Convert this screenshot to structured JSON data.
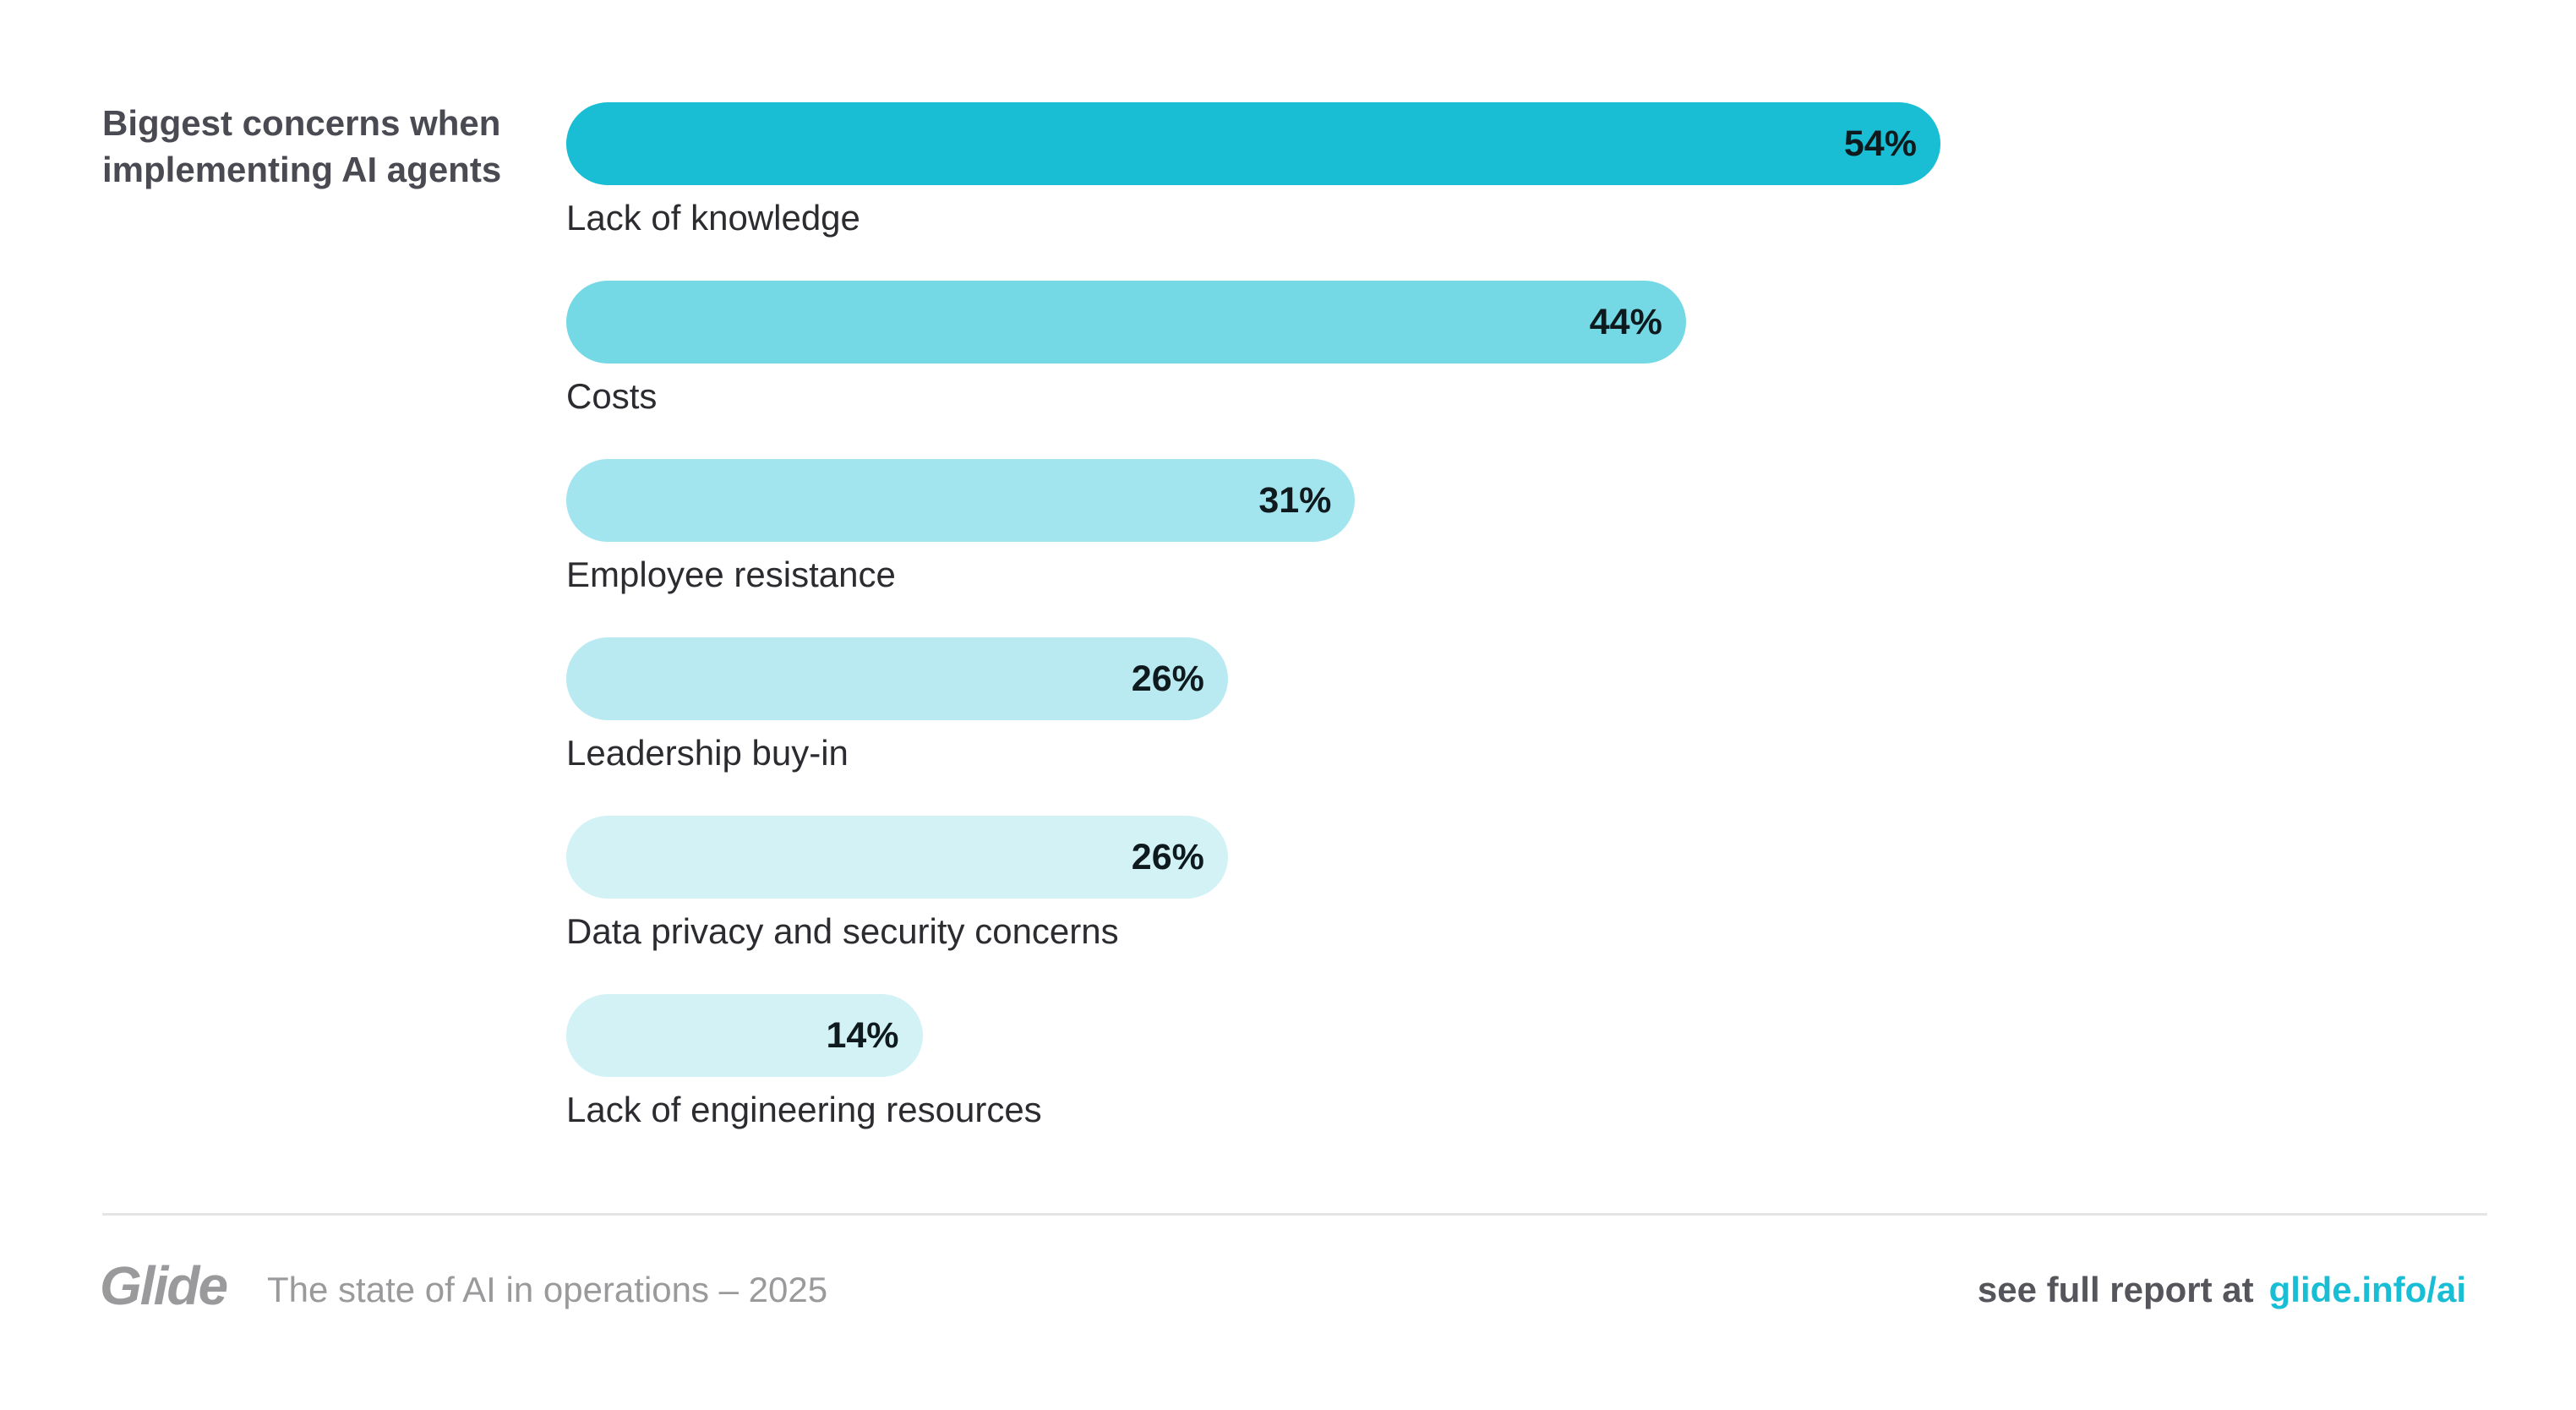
{
  "chart_data": {
    "type": "bar",
    "orientation": "horizontal",
    "title": "Biggest concerns when implementing AI agents",
    "categories": [
      "Lack of knowledge",
      "Costs",
      "Employee resistance",
      "Leadership buy-in",
      "Data privacy and security concerns",
      "Lack of engineering resources"
    ],
    "values": [
      54,
      44,
      31,
      26,
      26,
      14
    ],
    "value_labels": [
      "54%",
      "44%",
      "31%",
      "26%",
      "26%",
      "14%"
    ],
    "colors": [
      "#19bed4",
      "#75d9e5",
      "#a3e5ee",
      "#baeaf1",
      "#d2f2f6",
      "#d2f2f6"
    ],
    "xlim": [
      0,
      100
    ],
    "grid": false
  },
  "footer": {
    "logo": "Glide",
    "subtitle": "The state of AI in operations – 2025",
    "cta_text": "see full report at",
    "cta_link": "glide.info/ai"
  }
}
